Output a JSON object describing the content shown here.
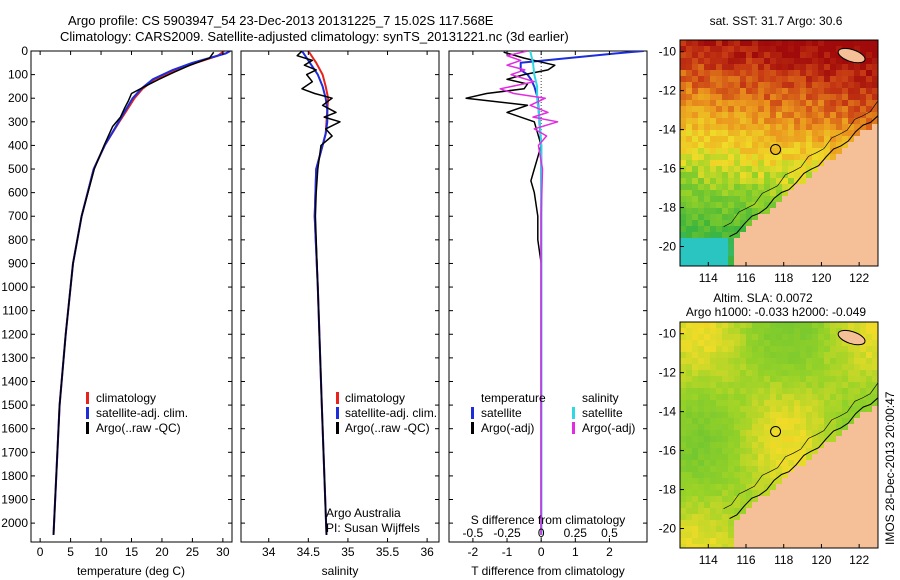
{
  "header": {
    "line1": "Argo profile: CS 5903947_54 23-Dec-2013 20131225_7 15.02S 117.568E",
    "line2": "Climatology: CARS2009. Satellite-adjusted climatology: synTS_20131221.nc (3d earlier)"
  },
  "colors": {
    "climatology": "#e8231e",
    "satellite": "#1c2ddb",
    "argo": "#000000",
    "satellite_salinity": "#2fd9e4",
    "argo_salinity": "#e22ce0",
    "land": "#f5c097"
  },
  "footer_side": "IMOS 28-Dec-2013 20:00:47",
  "chart_data": [
    {
      "type": "line",
      "ylabel_ticks": [
        0,
        100,
        200,
        300,
        400,
        500,
        600,
        700,
        800,
        900,
        1000,
        1100,
        1200,
        1300,
        1400,
        1500,
        1600,
        1700,
        1800,
        1900,
        2000
      ],
      "ylim": [
        2080,
        0
      ],
      "xlim": [
        -1.5,
        31.5
      ],
      "xticks": [
        0,
        5,
        10,
        15,
        20,
        25,
        30
      ],
      "xlabel": "temperature (deg C)",
      "legend": [
        "climatology",
        "satellite-adj. clim.",
        "Argo(..raw -QC)"
      ],
      "series": [
        {
          "name": "climatology",
          "y": [
            0,
            20,
            50,
            80,
            120,
            160,
            200,
            260,
            300,
            400,
            500,
            700,
            900,
            1200,
            1500,
            2050
          ],
          "x": [
            30.2,
            29.2,
            25.6,
            22.4,
            18.8,
            16.8,
            15.5,
            14.0,
            13.0,
            10.6,
            8.8,
            6.8,
            5.4,
            4.2,
            3.2,
            2.2
          ]
        },
        {
          "name": "satellite-adj. clim.",
          "y": [
            0,
            10,
            50,
            80,
            120,
            160,
            200,
            260,
            300,
            400,
            500,
            700,
            900,
            1200,
            1500,
            2050
          ],
          "x": [
            31.2,
            30.5,
            25.0,
            21.8,
            18.5,
            16.6,
            15.2,
            13.8,
            12.9,
            10.6,
            8.8,
            6.8,
            5.4,
            4.2,
            3.2,
            2.2
          ]
        },
        {
          "name": "Argo(..raw -QC)",
          "y": [
            5,
            30,
            60,
            90,
            120,
            150,
            180,
            210,
            240,
            280,
            320,
            400,
            500,
            700,
            900,
            1200,
            1500,
            2050
          ],
          "x": [
            28.5,
            27.8,
            24.6,
            22.0,
            19.5,
            17.2,
            15.0,
            14.5,
            13.9,
            13.2,
            11.9,
            10.5,
            8.9,
            6.8,
            5.4,
            4.2,
            3.2,
            2.2
          ]
        }
      ]
    },
    {
      "type": "line",
      "ylim": [
        2080,
        0
      ],
      "xlim": [
        33.65,
        36.15
      ],
      "xticks": [
        34,
        34.5,
        35,
        35.5,
        36
      ],
      "xlabel": "salinity",
      "legend": [
        "climatology",
        "satellite-adj. clim.",
        "Argo(..raw -QC)"
      ],
      "annotation": [
        "Argo Australia",
        "PI: Susan Wijffels"
      ],
      "series": [
        {
          "name": "climatology",
          "y": [
            0,
            50,
            100,
            150,
            200,
            250,
            300,
            350,
            400,
            500,
            700,
            1000,
            1500,
            2050
          ],
          "x": [
            34.5,
            34.6,
            34.68,
            34.72,
            34.75,
            34.74,
            34.73,
            34.72,
            34.68,
            34.6,
            34.58,
            34.62,
            34.67,
            34.73
          ]
        },
        {
          "name": "satellite-adj. clim.",
          "y": [
            0,
            50,
            100,
            150,
            200,
            250,
            300,
            350,
            400,
            500,
            700,
            1000,
            1500,
            2050
          ],
          "x": [
            34.42,
            34.52,
            34.62,
            34.68,
            34.72,
            34.74,
            34.74,
            34.72,
            34.68,
            34.6,
            34.58,
            34.62,
            34.67,
            34.73
          ]
        },
        {
          "name": "Argo(..raw -QC)",
          "y": [
            0,
            20,
            40,
            60,
            80,
            100,
            130,
            160,
            180,
            200,
            230,
            260,
            280,
            300,
            330,
            360,
            400,
            450,
            500,
            600,
            700,
            1000,
            1500,
            2050
          ],
          "x": [
            34.42,
            34.36,
            34.55,
            34.45,
            34.6,
            34.48,
            34.55,
            34.42,
            34.58,
            34.8,
            34.68,
            34.85,
            34.7,
            34.9,
            34.72,
            34.8,
            34.66,
            34.64,
            34.62,
            34.6,
            34.59,
            34.62,
            34.67,
            34.73
          ]
        }
      ]
    },
    {
      "type": "line",
      "ylim": [
        2080,
        0
      ],
      "xlim": [
        -2.7,
        3.1
      ],
      "xticks_bottom": [
        -2,
        -1,
        0,
        1,
        2
      ],
      "xlabel": "T difference from climatology",
      "top_axis_label": "S difference from climatology",
      "top_ticks": [
        "-0.5",
        "-0.25",
        "0",
        "0.25",
        "0.5"
      ],
      "legend_left_title": "temperature",
      "legend_right_title": "salinity",
      "legend": [
        "satellite",
        "Argo(-adj)",
        "satellite",
        "Argo(-adj)"
      ],
      "series": [
        {
          "name": "satellite",
          "kind": "temperature",
          "y": [
            0,
            10,
            50,
            80,
            100,
            120,
            150,
            200,
            300,
            400,
            500,
            1000,
            2050
          ],
          "x": [
            3.0,
            2.2,
            -0.6,
            -0.6,
            -0.4,
            -0.3,
            -0.2,
            -0.1,
            -0.05,
            0,
            0,
            0,
            0
          ]
        },
        {
          "name": "Argo(-adj)",
          "kind": "temperature",
          "y": [
            5,
            30,
            60,
            80,
            100,
            120,
            140,
            160,
            180,
            200,
            230,
            260,
            300,
            400,
            500,
            550,
            600,
            700,
            800,
            900,
            1000,
            1500,
            2050
          ],
          "x": [
            -1.1,
            -0.5,
            0.4,
            0.2,
            -0.5,
            -1.0,
            -0.4,
            -0.5,
            -1.6,
            -2.2,
            -0.4,
            -1.0,
            -0.2,
            0,
            -0.2,
            -0.3,
            -0.2,
            -0.1,
            -0.1,
            0,
            0,
            0,
            0
          ]
        },
        {
          "name": "satellite",
          "kind": "salinity",
          "y": [
            0,
            50,
            100,
            150,
            200,
            300,
            400,
            500,
            1000,
            2050
          ],
          "x": [
            -0.08,
            -0.06,
            -0.05,
            -0.03,
            -0.03,
            -0.01,
            0,
            0,
            0,
            0
          ]
        },
        {
          "name": "Argo(-adj)",
          "kind": "salinity",
          "y": [
            0,
            20,
            40,
            60,
            80,
            100,
            130,
            160,
            180,
            200,
            230,
            260,
            280,
            300,
            330,
            360,
            400,
            500,
            700,
            2050
          ],
          "x": [
            -0.1,
            -0.25,
            -0.15,
            -0.25,
            -0.12,
            -0.22,
            -0.05,
            -0.3,
            -0.2,
            0.03,
            -0.08,
            0.05,
            -0.06,
            0.12,
            -0.05,
            0.04,
            -0.02,
            0.01,
            0,
            0
          ]
        }
      ]
    },
    {
      "type": "heatmap",
      "title": "sat. SST: 31.7  Argo: 30.6",
      "xlim": [
        112.5,
        123
      ],
      "ylim": [
        -21,
        -9.4
      ],
      "xticks": [
        114,
        116,
        118,
        120,
        122
      ],
      "yticks": [
        -10,
        -12,
        -14,
        -16,
        -18,
        -20
      ],
      "marker": {
        "lon": 117.568,
        "lat": -15.02
      }
    },
    {
      "type": "heatmap",
      "title_line1": "Altim. SLA: 0.0072",
      "title_line2": "Argo h1000: -0.033  h2000: -0.049",
      "xlim": [
        112.5,
        123
      ],
      "ylim": [
        -21,
        -9.4
      ],
      "xticks": [
        114,
        116,
        118,
        120,
        122
      ],
      "yticks": [
        -10,
        -12,
        -14,
        -16,
        -18,
        -20
      ],
      "marker": {
        "lon": 117.568,
        "lat": -15.02
      }
    }
  ]
}
